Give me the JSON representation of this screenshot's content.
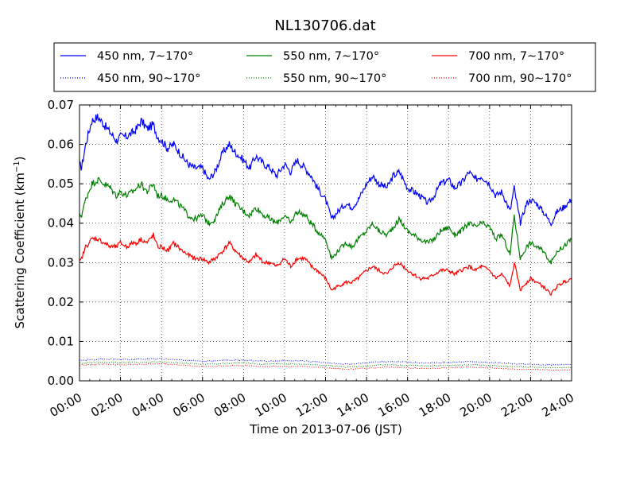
{
  "chart_data": {
    "type": "line",
    "title": "NL130706.dat",
    "xlabel": "Time on 2013-07-06 (JST)",
    "ylabel_main": "Scattering Coefficient (km",
    "ylabel_sup": "−1",
    "ylabel_tail": ")",
    "xlim": [
      0,
      24
    ],
    "ylim": [
      0,
      0.07
    ],
    "x_ticks": [
      0,
      2,
      4,
      6,
      8,
      10,
      12,
      14,
      16,
      18,
      20,
      22,
      24
    ],
    "x_tick_labels": [
      "00:00",
      "02:00",
      "04:00",
      "06:00",
      "08:00",
      "10:00",
      "12:00",
      "14:00",
      "16:00",
      "18:00",
      "20:00",
      "22:00",
      "24:00"
    ],
    "y_ticks": [
      0,
      0.01,
      0.02,
      0.03,
      0.04,
      0.05,
      0.06,
      0.07
    ],
    "y_tick_labels": [
      "0.00",
      "0.01",
      "0.02",
      "0.03",
      "0.04",
      "0.05",
      "0.06",
      "0.07"
    ],
    "grid": true,
    "legend_position": "top",
    "series": [
      {
        "name": "450 nm, 7∼170°",
        "color": "#0000ff",
        "style": "solid",
        "x": [
          0,
          0.1,
          0.3,
          0.6,
          0.9,
          1.2,
          1.5,
          1.8,
          2.0,
          2.3,
          2.6,
          2.8,
          3.0,
          3.3,
          3.6,
          3.8,
          4.0,
          4.3,
          4.6,
          5.0,
          5.3,
          5.6,
          6.0,
          6.3,
          6.6,
          7.0,
          7.3,
          7.6,
          8.0,
          8.3,
          8.6,
          9.0,
          9.3,
          9.6,
          10.0,
          10.3,
          10.6,
          11.0,
          11.3,
          11.6,
          12.0,
          12.3,
          12.6,
          13.0,
          13.3,
          13.6,
          14.0,
          14.3,
          14.6,
          15.0,
          15.3,
          15.6,
          16.0,
          16.3,
          16.6,
          17.0,
          17.3,
          17.6,
          18.0,
          18.3,
          18.6,
          19.0,
          19.3,
          19.6,
          20.0,
          20.3,
          20.6,
          21.0,
          21.2,
          21.5,
          21.8,
          22.0,
          22.3,
          22.6,
          23.0,
          23.3,
          23.6,
          24.0
        ],
        "y": [
          0.055,
          0.054,
          0.06,
          0.066,
          0.067,
          0.065,
          0.063,
          0.061,
          0.062,
          0.062,
          0.063,
          0.064,
          0.066,
          0.064,
          0.065,
          0.062,
          0.061,
          0.059,
          0.06,
          0.057,
          0.055,
          0.054,
          0.054,
          0.051,
          0.053,
          0.058,
          0.06,
          0.058,
          0.056,
          0.054,
          0.057,
          0.055,
          0.054,
          0.052,
          0.055,
          0.053,
          0.056,
          0.054,
          0.052,
          0.049,
          0.046,
          0.041,
          0.043,
          0.045,
          0.044,
          0.046,
          0.05,
          0.052,
          0.05,
          0.049,
          0.052,
          0.053,
          0.049,
          0.048,
          0.047,
          0.045,
          0.047,
          0.05,
          0.051,
          0.049,
          0.05,
          0.053,
          0.051,
          0.052,
          0.05,
          0.047,
          0.048,
          0.043,
          0.049,
          0.04,
          0.045,
          0.046,
          0.045,
          0.043,
          0.04,
          0.043,
          0.044,
          0.046
        ]
      },
      {
        "name": "550 nm, 7∼170°",
        "color": "#008000",
        "style": "solid",
        "x": [
          0,
          0.1,
          0.3,
          0.6,
          0.9,
          1.2,
          1.5,
          1.8,
          2.0,
          2.3,
          2.6,
          2.8,
          3.0,
          3.3,
          3.6,
          3.8,
          4.0,
          4.3,
          4.6,
          5.0,
          5.3,
          5.6,
          6.0,
          6.3,
          6.6,
          7.0,
          7.3,
          7.6,
          8.0,
          8.3,
          8.6,
          9.0,
          9.3,
          9.6,
          10.0,
          10.3,
          10.6,
          11.0,
          11.3,
          11.6,
          12.0,
          12.3,
          12.6,
          13.0,
          13.3,
          13.6,
          14.0,
          14.3,
          14.6,
          15.0,
          15.3,
          15.6,
          16.0,
          16.3,
          16.6,
          17.0,
          17.3,
          17.6,
          18.0,
          18.3,
          18.6,
          19.0,
          19.3,
          19.6,
          20.0,
          20.3,
          20.6,
          21.0,
          21.2,
          21.5,
          21.8,
          22.0,
          22.3,
          22.6,
          23.0,
          23.3,
          23.6,
          24.0
        ],
        "y": [
          0.042,
          0.042,
          0.046,
          0.05,
          0.051,
          0.05,
          0.049,
          0.047,
          0.048,
          0.047,
          0.048,
          0.049,
          0.05,
          0.048,
          0.05,
          0.047,
          0.047,
          0.046,
          0.046,
          0.044,
          0.042,
          0.041,
          0.042,
          0.04,
          0.041,
          0.045,
          0.047,
          0.045,
          0.043,
          0.042,
          0.044,
          0.042,
          0.041,
          0.04,
          0.042,
          0.04,
          0.043,
          0.042,
          0.04,
          0.038,
          0.036,
          0.031,
          0.033,
          0.035,
          0.034,
          0.036,
          0.038,
          0.04,
          0.038,
          0.037,
          0.039,
          0.041,
          0.038,
          0.037,
          0.036,
          0.035,
          0.036,
          0.038,
          0.039,
          0.037,
          0.038,
          0.04,
          0.039,
          0.04,
          0.039,
          0.036,
          0.037,
          0.032,
          0.042,
          0.031,
          0.034,
          0.035,
          0.034,
          0.033,
          0.03,
          0.033,
          0.034,
          0.036
        ]
      },
      {
        "name": "700 nm, 7∼170°",
        "color": "#ff0000",
        "style": "solid",
        "x": [
          0,
          0.1,
          0.3,
          0.6,
          0.9,
          1.2,
          1.5,
          1.8,
          2.0,
          2.3,
          2.6,
          2.8,
          3.0,
          3.3,
          3.6,
          3.8,
          4.0,
          4.3,
          4.6,
          5.0,
          5.3,
          5.6,
          6.0,
          6.3,
          6.6,
          7.0,
          7.3,
          7.6,
          8.0,
          8.3,
          8.6,
          9.0,
          9.3,
          9.6,
          10.0,
          10.3,
          10.6,
          11.0,
          11.3,
          11.6,
          12.0,
          12.3,
          12.6,
          13.0,
          13.3,
          13.6,
          14.0,
          14.3,
          14.6,
          15.0,
          15.3,
          15.6,
          16.0,
          16.3,
          16.6,
          17.0,
          17.3,
          17.6,
          18.0,
          18.3,
          18.6,
          19.0,
          19.3,
          19.6,
          20.0,
          20.3,
          20.6,
          21.0,
          21.2,
          21.5,
          21.8,
          22.0,
          22.3,
          22.6,
          23.0,
          23.3,
          23.6,
          24.0
        ],
        "y": [
          0.03,
          0.031,
          0.034,
          0.036,
          0.036,
          0.035,
          0.034,
          0.034,
          0.035,
          0.034,
          0.035,
          0.035,
          0.036,
          0.035,
          0.037,
          0.034,
          0.034,
          0.033,
          0.035,
          0.033,
          0.032,
          0.031,
          0.031,
          0.03,
          0.031,
          0.033,
          0.035,
          0.033,
          0.031,
          0.03,
          0.032,
          0.03,
          0.03,
          0.029,
          0.031,
          0.029,
          0.031,
          0.031,
          0.029,
          0.028,
          0.026,
          0.023,
          0.024,
          0.025,
          0.025,
          0.026,
          0.028,
          0.029,
          0.028,
          0.027,
          0.029,
          0.03,
          0.028,
          0.027,
          0.026,
          0.026,
          0.027,
          0.028,
          0.028,
          0.027,
          0.028,
          0.029,
          0.028,
          0.029,
          0.028,
          0.026,
          0.027,
          0.024,
          0.03,
          0.023,
          0.025,
          0.026,
          0.025,
          0.024,
          0.022,
          0.024,
          0.025,
          0.026
        ]
      },
      {
        "name": "450 nm, 90∼170°",
        "color": "#0000ff",
        "style": "dotted",
        "x": [
          0,
          1,
          2,
          3,
          4,
          5,
          6,
          7,
          8,
          9,
          10,
          11,
          12,
          13,
          14,
          15,
          16,
          17,
          18,
          19,
          20,
          21,
          22,
          23,
          24
        ],
        "y": [
          0.0052,
          0.0055,
          0.0054,
          0.0055,
          0.0056,
          0.0053,
          0.005,
          0.0052,
          0.0053,
          0.005,
          0.0051,
          0.005,
          0.0046,
          0.0042,
          0.0046,
          0.0049,
          0.0047,
          0.0045,
          0.0047,
          0.0049,
          0.0047,
          0.0044,
          0.0042,
          0.004,
          0.0042
        ]
      },
      {
        "name": "550 nm, 90∼170°",
        "color": "#008000",
        "style": "dotted",
        "x": [
          0,
          1,
          2,
          3,
          4,
          5,
          6,
          7,
          8,
          9,
          10,
          11,
          12,
          13,
          14,
          15,
          16,
          17,
          18,
          19,
          20,
          21,
          22,
          23,
          24
        ],
        "y": [
          0.0045,
          0.0047,
          0.0046,
          0.0047,
          0.0048,
          0.0045,
          0.0042,
          0.0044,
          0.0045,
          0.0042,
          0.0043,
          0.0042,
          0.0039,
          0.0035,
          0.0038,
          0.0041,
          0.0039,
          0.0038,
          0.0039,
          0.0041,
          0.0039,
          0.0036,
          0.0035,
          0.0033,
          0.0034
        ]
      },
      {
        "name": "700 nm, 90∼170°",
        "color": "#ff0000",
        "style": "dotted",
        "x": [
          0,
          1,
          2,
          3,
          4,
          5,
          6,
          7,
          8,
          9,
          10,
          11,
          12,
          13,
          14,
          15,
          16,
          17,
          18,
          19,
          20,
          21,
          22,
          23,
          24
        ],
        "y": [
          0.004,
          0.0042,
          0.0041,
          0.0042,
          0.0043,
          0.004,
          0.0036,
          0.0038,
          0.0039,
          0.0036,
          0.0037,
          0.0036,
          0.0033,
          0.0029,
          0.0032,
          0.0035,
          0.0033,
          0.0031,
          0.0033,
          0.0035,
          0.0033,
          0.003,
          0.0029,
          0.0027,
          0.0028
        ]
      }
    ]
  }
}
